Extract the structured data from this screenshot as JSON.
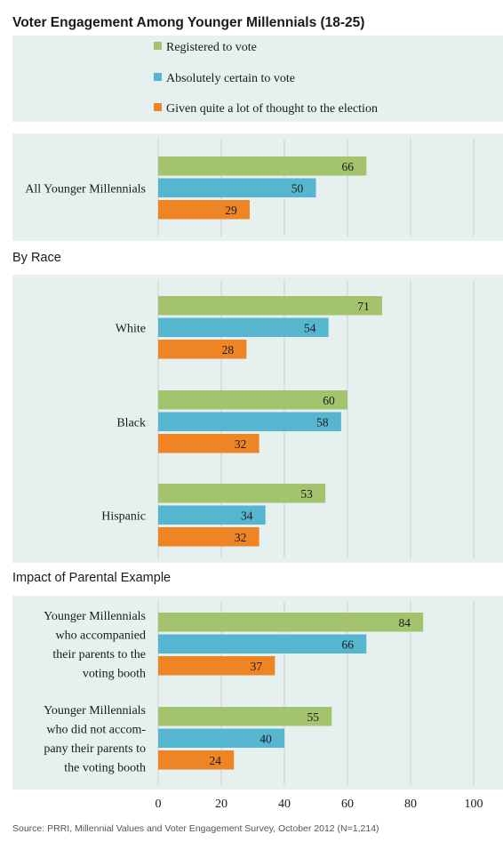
{
  "chart_data": {
    "type": "bar",
    "orientation": "horizontal",
    "title": "Voter Engagement Among Younger Millennials (18-25)",
    "series": [
      {
        "name": "Registered to vote",
        "color": "#a3c46c"
      },
      {
        "name": "Absolutely certain to vote",
        "color": "#57b6cf"
      },
      {
        "name": "Given quite a lot of thought to the election",
        "color": "#ee8424"
      }
    ],
    "xlim": [
      0,
      100
    ],
    "xticks": [
      0,
      20,
      40,
      60,
      80,
      100
    ],
    "grid": true,
    "legend_position": "top",
    "panels": [
      {
        "heading": "",
        "groups": [
          {
            "label": [
              "All Younger Millennials"
            ],
            "values": [
              66,
              50,
              29
            ]
          }
        ]
      },
      {
        "heading": "By Race",
        "groups": [
          {
            "label": [
              "White"
            ],
            "values": [
              71,
              54,
              28
            ]
          },
          {
            "label": [
              "Black"
            ],
            "values": [
              60,
              58,
              32
            ]
          },
          {
            "label": [
              "Hispanic"
            ],
            "values": [
              53,
              34,
              32
            ]
          }
        ]
      },
      {
        "heading": "Impact of Parental Example",
        "groups": [
          {
            "label": [
              "Younger Millennials",
              "who accompanied",
              "their parents to the",
              "voting booth"
            ],
            "values": [
              84,
              66,
              37
            ]
          },
          {
            "label": [
              "Younger Millennials",
              "who did not accom-",
              "pany their parents to",
              "the voting booth"
            ],
            "values": [
              55,
              40,
              24
            ]
          }
        ]
      }
    ],
    "source": "Source: PRRI, Millennial Values and Voter Engagement Survey, October 2012 (N=1,214)"
  },
  "colors": {
    "panel_bg": "#e6f0ef",
    "gridline": "#c9cfd0",
    "registered": "#a3c46c",
    "certain": "#57b6cf",
    "thought": "#ee8424"
  }
}
